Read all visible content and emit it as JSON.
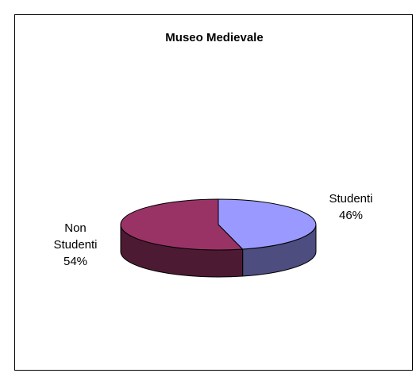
{
  "chart_data": {
    "type": "pie",
    "title": "Museo Medievale",
    "three_d": true,
    "slices": [
      {
        "name": "Studenti",
        "value": 46,
        "label": "46%",
        "color": "#9999FF",
        "side_color": "#4D4D80"
      },
      {
        "name": "Non Studenti",
        "value": 54,
        "label": "54%",
        "color": "#993366",
        "side_color": "#4D1A33"
      }
    ],
    "legend": "none",
    "frame_border_color": "#000000"
  }
}
